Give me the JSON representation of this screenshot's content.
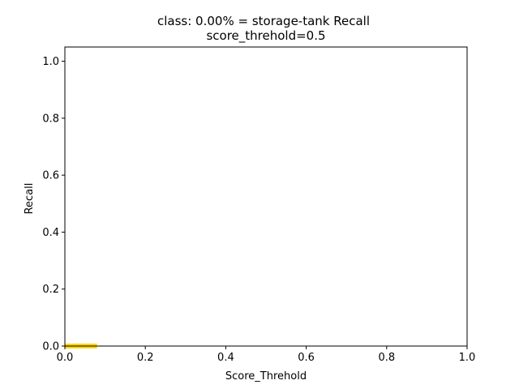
{
  "chart_data": {
    "type": "line",
    "title": [
      "class: 0.00% = storage-tank Recall",
      "score_threhold=0.5"
    ],
    "xlabel": "Score_Threhold",
    "ylabel": "Recall",
    "xlim": [
      0.0,
      1.0
    ],
    "ylim": [
      0.0,
      1.05
    ],
    "xticks": [
      0.0,
      0.2,
      0.4,
      0.6,
      0.8,
      1.0
    ],
    "xtick_labels": [
      "0.0",
      "0.2",
      "0.4",
      "0.6",
      "0.8",
      "1.0"
    ],
    "yticks": [
      0.0,
      0.2,
      0.4,
      0.6,
      0.8,
      1.0
    ],
    "ytick_labels": [
      "0.0",
      "0.2",
      "0.4",
      "0.6",
      "0.8",
      "1.0"
    ],
    "grid": false,
    "series": [
      {
        "color": "#ffd700",
        "x": [
          0.0,
          0.08
        ],
        "y": [
          0.0,
          0.0
        ]
      }
    ]
  }
}
